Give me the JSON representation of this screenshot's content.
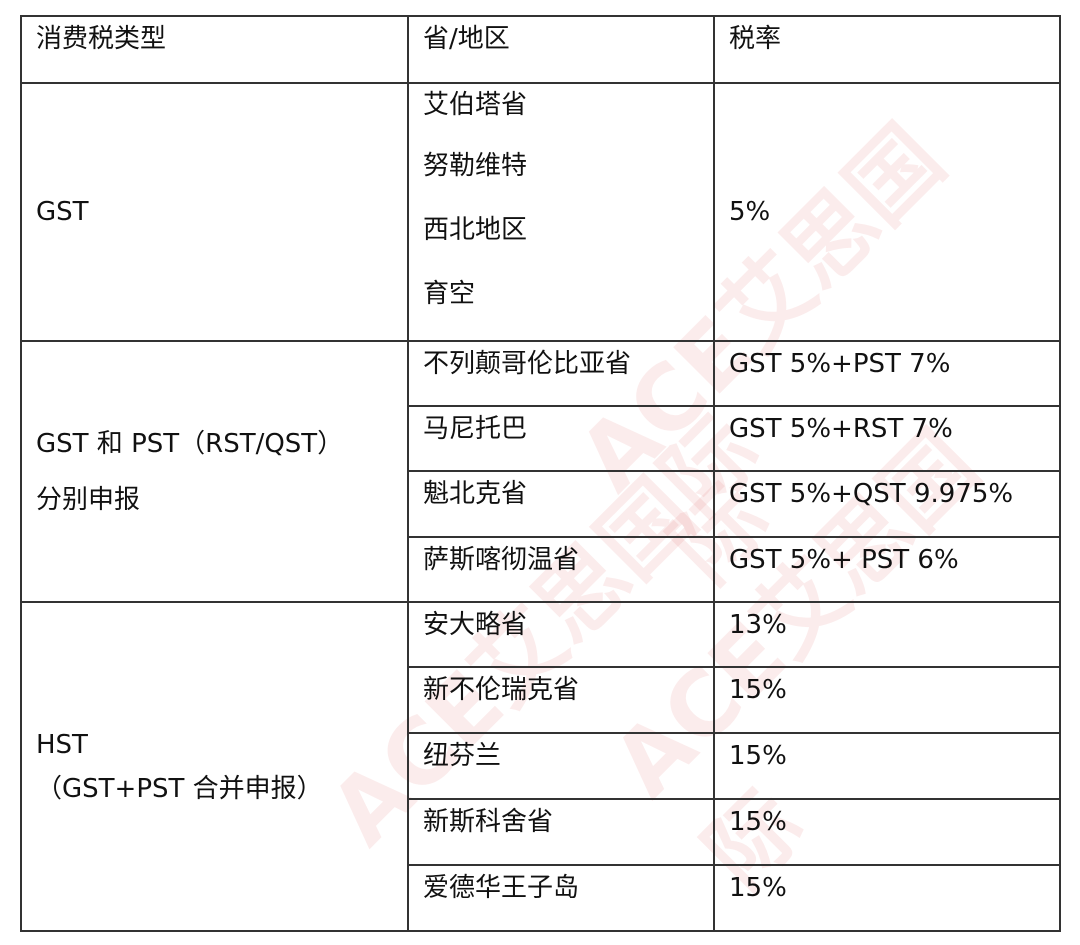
{
  "headers": [
    "消费税类型",
    "省/地区",
    "税率"
  ],
  "groups": [
    {
      "type_lines": [
        "GST"
      ],
      "provinces": [
        "艾伯塔省",
        "努勒维特",
        "西北地区",
        "育空"
      ],
      "rate": "5%"
    },
    {
      "type_lines": [
        "GST 和 PST（RST/QST）",
        "分别申报"
      ],
      "rows": [
        {
          "province": "不列颠哥伦比亚省",
          "rate": "GST 5%+PST 7%"
        },
        {
          "province": "马尼托巴",
          "rate": "GST 5%+RST 7%"
        },
        {
          "province": "魁北克省",
          "rate": "GST 5%+QST 9.975%"
        },
        {
          "province": "萨斯喀彻温省",
          "rate": "GST 5%+ PST 6%"
        }
      ]
    },
    {
      "type_lines": [
        "HST",
        "（GST+PST 合并申报）"
      ],
      "rows": [
        {
          "province": "安大略省",
          "rate": "13%"
        },
        {
          "province": "新不伦瑞克省",
          "rate": "15%"
        },
        {
          "province": "纽芬兰",
          "rate": "15%"
        },
        {
          "province": "新斯科舍省",
          "rate": "15%"
        },
        {
          "province": "爱德华王子岛",
          "rate": "15%"
        }
      ]
    }
  ],
  "watermark": "ACE艾思国际",
  "watermark_color": "#d22222"
}
